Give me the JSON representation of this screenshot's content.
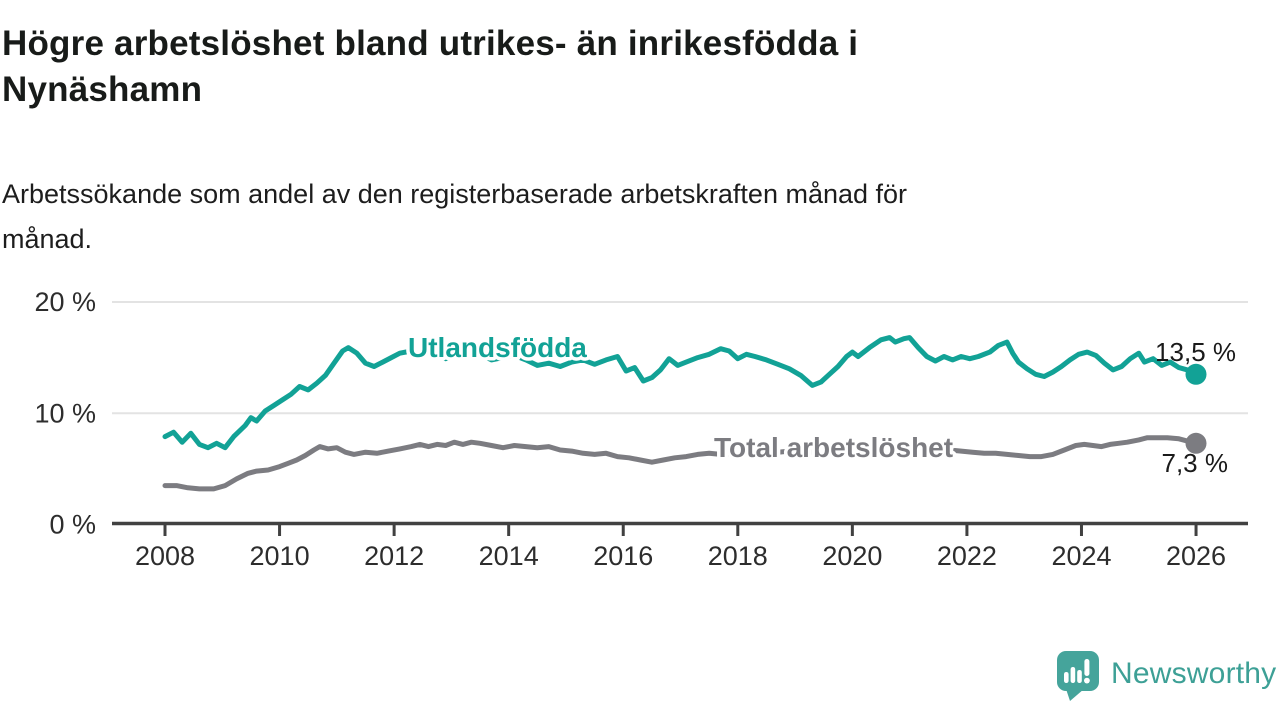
{
  "header": {
    "title_line1": "Högre arbetslöshet bland utrikes- än inrikesfödda i",
    "title_line2": "Nynäshamn",
    "subtitle_line1": "Arbetssökande som andel av den registerbaserade arbetskraften månad för",
    "subtitle_line2": "månad."
  },
  "chart_data": {
    "type": "line",
    "title": "Högre arbetslöshet bland utrikes- än inrikesfödda i Nynäshamn",
    "subtitle": "Arbetssökande som andel av den registerbaserade arbetskraften månad för månad.",
    "x_unit": "decimal year, monthly observations 2008–2026",
    "xlim": [
      2007.1,
      2026.9
    ],
    "ylim": [
      0,
      20
    ],
    "grid": "horizontal",
    "legend_position": "inline-labels",
    "x_ticks": [
      2008,
      2010,
      2012,
      2014,
      2016,
      2018,
      2020,
      2022,
      2024,
      2026
    ],
    "y_ticks": [
      {
        "value": 0,
        "label": "0 %"
      },
      {
        "value": 10,
        "label": "10 %"
      },
      {
        "value": 20,
        "label": "20 %"
      }
    ],
    "series": [
      {
        "name": "Utlandsfödda",
        "color": "#12a296",
        "end_label": "13,5 %",
        "end_value": 13.5,
        "points": [
          [
            2008.0,
            7.9
          ],
          [
            2008.15,
            8.3
          ],
          [
            2008.3,
            7.4
          ],
          [
            2008.45,
            8.2
          ],
          [
            2008.6,
            7.2
          ],
          [
            2008.75,
            6.9
          ],
          [
            2008.9,
            7.3
          ],
          [
            2009.05,
            6.9
          ],
          [
            2009.2,
            7.9
          ],
          [
            2009.4,
            8.9
          ],
          [
            2009.5,
            9.6
          ],
          [
            2009.6,
            9.3
          ],
          [
            2009.75,
            10.2
          ],
          [
            2009.9,
            10.7
          ],
          [
            2010.05,
            11.2
          ],
          [
            2010.2,
            11.7
          ],
          [
            2010.35,
            12.4
          ],
          [
            2010.5,
            12.1
          ],
          [
            2010.65,
            12.7
          ],
          [
            2010.8,
            13.4
          ],
          [
            2010.95,
            14.5
          ],
          [
            2011.1,
            15.6
          ],
          [
            2011.2,
            15.9
          ],
          [
            2011.35,
            15.4
          ],
          [
            2011.5,
            14.5
          ],
          [
            2011.65,
            14.2
          ],
          [
            2011.8,
            14.6
          ],
          [
            2011.95,
            15.0
          ],
          [
            2012.1,
            15.4
          ],
          [
            2012.3,
            15.6
          ],
          [
            2012.5,
            15.2
          ],
          [
            2012.7,
            15.5
          ],
          [
            2012.9,
            14.9
          ],
          [
            2013.1,
            15.3
          ],
          [
            2013.3,
            15.1
          ],
          [
            2013.5,
            15.3
          ],
          [
            2013.7,
            14.8
          ],
          [
            2013.9,
            15.0
          ],
          [
            2014.1,
            15.2
          ],
          [
            2014.3,
            14.8
          ],
          [
            2014.5,
            14.3
          ],
          [
            2014.7,
            14.5
          ],
          [
            2014.9,
            14.2
          ],
          [
            2015.1,
            14.6
          ],
          [
            2015.3,
            14.8
          ],
          [
            2015.5,
            14.4
          ],
          [
            2015.7,
            14.8
          ],
          [
            2015.9,
            15.1
          ],
          [
            2016.05,
            13.8
          ],
          [
            2016.2,
            14.1
          ],
          [
            2016.35,
            12.9
          ],
          [
            2016.5,
            13.2
          ],
          [
            2016.65,
            13.9
          ],
          [
            2016.8,
            14.9
          ],
          [
            2016.95,
            14.3
          ],
          [
            2017.1,
            14.6
          ],
          [
            2017.3,
            15.0
          ],
          [
            2017.5,
            15.3
          ],
          [
            2017.7,
            15.8
          ],
          [
            2017.85,
            15.6
          ],
          [
            2018.0,
            14.9
          ],
          [
            2018.15,
            15.3
          ],
          [
            2018.3,
            15.1
          ],
          [
            2018.5,
            14.8
          ],
          [
            2018.7,
            14.4
          ],
          [
            2018.9,
            14.0
          ],
          [
            2019.1,
            13.4
          ],
          [
            2019.3,
            12.5
          ],
          [
            2019.45,
            12.8
          ],
          [
            2019.6,
            13.5
          ],
          [
            2019.75,
            14.2
          ],
          [
            2019.9,
            15.1
          ],
          [
            2020.0,
            15.5
          ],
          [
            2020.1,
            15.1
          ],
          [
            2020.3,
            15.9
          ],
          [
            2020.5,
            16.6
          ],
          [
            2020.65,
            16.8
          ],
          [
            2020.75,
            16.4
          ],
          [
            2020.9,
            16.7
          ],
          [
            2021.0,
            16.8
          ],
          [
            2021.15,
            15.9
          ],
          [
            2021.3,
            15.1
          ],
          [
            2021.45,
            14.7
          ],
          [
            2021.6,
            15.1
          ],
          [
            2021.75,
            14.8
          ],
          [
            2021.9,
            15.1
          ],
          [
            2022.05,
            14.9
          ],
          [
            2022.2,
            15.1
          ],
          [
            2022.4,
            15.5
          ],
          [
            2022.55,
            16.1
          ],
          [
            2022.7,
            16.4
          ],
          [
            2022.8,
            15.4
          ],
          [
            2022.9,
            14.6
          ],
          [
            2023.05,
            14.0
          ],
          [
            2023.2,
            13.5
          ],
          [
            2023.35,
            13.3
          ],
          [
            2023.5,
            13.7
          ],
          [
            2023.65,
            14.2
          ],
          [
            2023.8,
            14.8
          ],
          [
            2023.95,
            15.3
          ],
          [
            2024.1,
            15.5
          ],
          [
            2024.25,
            15.2
          ],
          [
            2024.4,
            14.5
          ],
          [
            2024.55,
            13.9
          ],
          [
            2024.7,
            14.2
          ],
          [
            2024.85,
            14.9
          ],
          [
            2025.0,
            15.4
          ],
          [
            2025.1,
            14.6
          ],
          [
            2025.25,
            14.9
          ],
          [
            2025.4,
            14.3
          ],
          [
            2025.55,
            14.6
          ],
          [
            2025.7,
            14.1
          ],
          [
            2025.85,
            13.9
          ],
          [
            2026.0,
            13.5
          ]
        ]
      },
      {
        "name": "Total arbetslöshet",
        "color": "#7c7c81",
        "end_label": "7,3 %",
        "end_value": 7.3,
        "points": [
          [
            2008.0,
            3.5
          ],
          [
            2008.2,
            3.5
          ],
          [
            2008.4,
            3.3
          ],
          [
            2008.6,
            3.2
          ],
          [
            2008.85,
            3.2
          ],
          [
            2009.05,
            3.5
          ],
          [
            2009.25,
            4.1
          ],
          [
            2009.45,
            4.6
          ],
          [
            2009.6,
            4.8
          ],
          [
            2009.8,
            4.9
          ],
          [
            2010.0,
            5.2
          ],
          [
            2010.15,
            5.5
          ],
          [
            2010.3,
            5.8
          ],
          [
            2010.45,
            6.2
          ],
          [
            2010.6,
            6.7
          ],
          [
            2010.7,
            7.0
          ],
          [
            2010.85,
            6.8
          ],
          [
            2011.0,
            6.9
          ],
          [
            2011.15,
            6.5
          ],
          [
            2011.3,
            6.3
          ],
          [
            2011.5,
            6.5
          ],
          [
            2011.7,
            6.4
          ],
          [
            2011.9,
            6.6
          ],
          [
            2012.1,
            6.8
          ],
          [
            2012.3,
            7.0
          ],
          [
            2012.45,
            7.2
          ],
          [
            2012.6,
            7.0
          ],
          [
            2012.75,
            7.2
          ],
          [
            2012.9,
            7.1
          ],
          [
            2013.05,
            7.4
          ],
          [
            2013.2,
            7.2
          ],
          [
            2013.35,
            7.4
          ],
          [
            2013.5,
            7.3
          ],
          [
            2013.7,
            7.1
          ],
          [
            2013.9,
            6.9
          ],
          [
            2014.1,
            7.1
          ],
          [
            2014.3,
            7.0
          ],
          [
            2014.5,
            6.9
          ],
          [
            2014.7,
            7.0
          ],
          [
            2014.9,
            6.7
          ],
          [
            2015.1,
            6.6
          ],
          [
            2015.3,
            6.4
          ],
          [
            2015.5,
            6.3
          ],
          [
            2015.7,
            6.4
          ],
          [
            2015.9,
            6.1
          ],
          [
            2016.1,
            6.0
          ],
          [
            2016.3,
            5.8
          ],
          [
            2016.5,
            5.6
          ],
          [
            2016.7,
            5.8
          ],
          [
            2016.9,
            6.0
          ],
          [
            2017.1,
            6.1
          ],
          [
            2017.3,
            6.3
          ],
          [
            2017.5,
            6.4
          ],
          [
            2017.7,
            6.3
          ],
          [
            2017.9,
            6.4
          ],
          [
            2018.1,
            6.4
          ],
          [
            2018.3,
            6.5
          ],
          [
            2018.5,
            6.4
          ],
          [
            2018.7,
            6.5
          ],
          [
            2018.9,
            6.6
          ],
          [
            2019.1,
            6.6
          ],
          [
            2019.3,
            6.5
          ],
          [
            2019.5,
            6.6
          ],
          [
            2019.7,
            6.7
          ],
          [
            2019.9,
            6.9
          ],
          [
            2020.1,
            7.0
          ],
          [
            2020.3,
            7.1
          ],
          [
            2020.5,
            7.2
          ],
          [
            2020.7,
            7.1
          ],
          [
            2020.9,
            7.1
          ],
          [
            2021.1,
            7.0
          ],
          [
            2021.3,
            6.9
          ],
          [
            2021.5,
            6.8
          ],
          [
            2021.7,
            6.7
          ],
          [
            2021.9,
            6.6
          ],
          [
            2022.1,
            6.5
          ],
          [
            2022.3,
            6.4
          ],
          [
            2022.5,
            6.4
          ],
          [
            2022.7,
            6.3
          ],
          [
            2022.9,
            6.2
          ],
          [
            2023.1,
            6.1
          ],
          [
            2023.3,
            6.1
          ],
          [
            2023.5,
            6.3
          ],
          [
            2023.7,
            6.7
          ],
          [
            2023.9,
            7.1
          ],
          [
            2024.05,
            7.2
          ],
          [
            2024.2,
            7.1
          ],
          [
            2024.35,
            7.0
          ],
          [
            2024.5,
            7.2
          ],
          [
            2024.65,
            7.3
          ],
          [
            2024.8,
            7.4
          ],
          [
            2025.0,
            7.6
          ],
          [
            2025.15,
            7.8
          ],
          [
            2025.3,
            7.8
          ],
          [
            2025.5,
            7.8
          ],
          [
            2025.7,
            7.7
          ],
          [
            2025.85,
            7.5
          ],
          [
            2026.0,
            7.3
          ]
        ]
      }
    ]
  },
  "branding": {
    "logo_text": "Newsworthy",
    "logo_text_color": "#3da096",
    "logo_icon_color": "#45a49b"
  }
}
